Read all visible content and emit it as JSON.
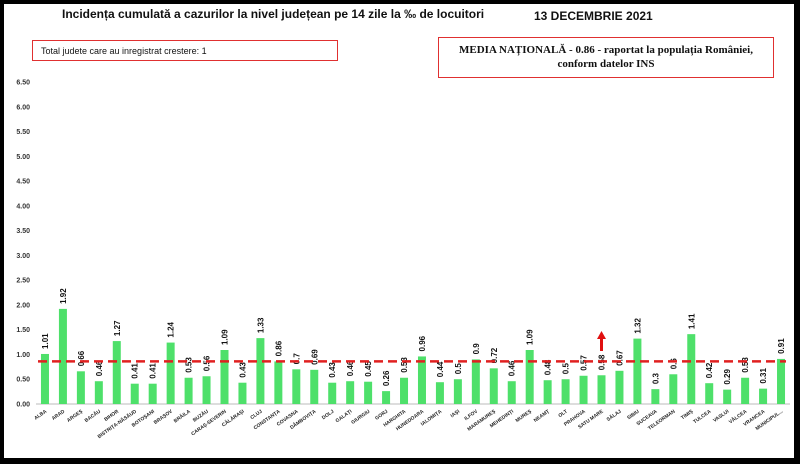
{
  "header": {
    "title": "Incidența cumulată a cazurilor la nivel județean pe 14 zile la ‰ de locuitori",
    "date": "13 DECEMBRIE 2021"
  },
  "boxes": {
    "total_label": "Total judete care au inregistrat crestere: 1",
    "media_line1": "MEDIA NAȚIONALĂ  - 0.86 -  raportat la populația României,",
    "media_line2": "conform datelor INS"
  },
  "colors": {
    "bar": "#4ee06a",
    "average": "#e02020",
    "arrow": "#e01010"
  },
  "chart_data": {
    "type": "bar",
    "title": "Incidența cumulată a cazurilor la nivel județean pe 14 zile la ‰ de locuitori",
    "xlabel": "",
    "ylabel": "",
    "ylim": [
      0,
      6.5
    ],
    "yticks": [
      "0.00",
      "0.50",
      "1.00",
      "1.50",
      "2.00",
      "2.50",
      "3.00",
      "3.50",
      "4.00",
      "4.50",
      "5.00",
      "5.50",
      "6.00",
      "6.50"
    ],
    "grid": false,
    "average_line": 0.86,
    "increase_marker": "SATU MARE",
    "categories": [
      "ALBA",
      "ARAD",
      "ARGEȘ",
      "BACĂU",
      "BIHOR",
      "BISTRIȚA-NĂSĂUD",
      "BOTOȘANI",
      "BRAȘOV",
      "BRĂILA",
      "BUZĂU",
      "CARAȘ-SEVERIN",
      "CĂLĂRAȘI",
      "CLUJ",
      "CONSTANȚA",
      "COVASNA",
      "DÂMBOVIȚA",
      "DOLJ",
      "GALAȚI",
      "GIURGIU",
      "GORJ",
      "HARGHITA",
      "HUNEDOARA",
      "IALOMIȚA",
      "IAȘI",
      "ILFOV",
      "MARAMUREȘ",
      "MEHEDINȚI",
      "MUREȘ",
      "NEAMȚ",
      "OLT",
      "PRAHOVA",
      "SATU MARE",
      "SĂLAJ",
      "SIBIU",
      "SUCEAVA",
      "TELEORMAN",
      "TIMIȘ",
      "TULCEA",
      "VASLUI",
      "VÂLCEA",
      "VRANCEA",
      "MUNICIPUL..."
    ],
    "value_labels": [
      "1.01",
      "1.92",
      "0.66",
      "0.46",
      "1.27",
      "0.41",
      "0.41",
      "1.24",
      "0.53",
      "0.56",
      "1.09",
      "0.43",
      "1.33",
      "0.86",
      "0.7",
      "0.69",
      "0.43",
      "0.46",
      "0.45",
      "0.26",
      "0.53",
      "0.96",
      "0.44",
      "0.5",
      "0.9",
      "0.72",
      "0.46",
      "1.09",
      "0.48",
      "0.5",
      "0.57",
      "0.58",
      "0.67",
      "1.32",
      "0.3",
      "0.6",
      "1.41",
      "0.42",
      "0.29",
      "0.53",
      "0.31",
      "0.91"
    ],
    "values": [
      1.01,
      1.92,
      0.66,
      0.46,
      1.27,
      0.41,
      0.41,
      1.24,
      0.53,
      0.56,
      1.09,
      0.43,
      1.33,
      0.86,
      0.7,
      0.69,
      0.43,
      0.46,
      0.45,
      0.26,
      0.53,
      0.96,
      0.44,
      0.5,
      0.9,
      0.72,
      0.46,
      1.09,
      0.48,
      0.5,
      0.57,
      0.58,
      0.67,
      1.32,
      0.3,
      0.6,
      1.41,
      0.42,
      0.29,
      0.53,
      0.31,
      0.91
    ]
  }
}
